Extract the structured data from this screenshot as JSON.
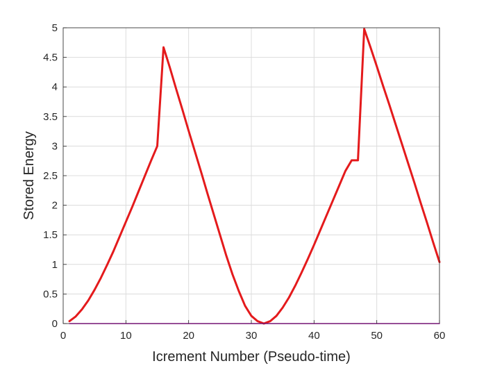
{
  "chart_data": {
    "type": "line",
    "title": "",
    "xlabel": "Icrement Number (Pseudo-time)",
    "ylabel": "Stored Energy",
    "xlim": [
      0,
      60
    ],
    "ylim": [
      0,
      5
    ],
    "xticks": [
      0,
      10,
      20,
      30,
      40,
      50,
      60
    ],
    "yticks": [
      0,
      0.5,
      1,
      1.5,
      2,
      2.5,
      3,
      3.5,
      4,
      4.5,
      5
    ],
    "xtick_labels": [
      "0",
      "10",
      "20",
      "30",
      "40",
      "50",
      "60"
    ],
    "ytick_labels": [
      "0",
      "0.5",
      "1",
      "1.5",
      "2",
      "2.5",
      "3",
      "3.5",
      "4",
      "4.5",
      "5"
    ],
    "grid": true,
    "legend": "none",
    "series": [
      {
        "color": "#e41a1c",
        "x": [
          1,
          2,
          3,
          4,
          5,
          6,
          7,
          8,
          9,
          10,
          11,
          12,
          13,
          14,
          15,
          16,
          17,
          18,
          19,
          20,
          21,
          22,
          23,
          24,
          25,
          26,
          27,
          28,
          29,
          30,
          31,
          32,
          33,
          34,
          35,
          36,
          37,
          38,
          39,
          40,
          41,
          42,
          43,
          44,
          45,
          46,
          47,
          48,
          49,
          50,
          51,
          52,
          53,
          54,
          55,
          56,
          57,
          58,
          59,
          60
        ],
        "y": [
          0.04,
          0.12,
          0.24,
          0.39,
          0.57,
          0.77,
          0.99,
          1.22,
          1.47,
          1.72,
          1.97,
          2.23,
          2.49,
          2.75,
          3.0,
          4.67,
          4.33,
          3.97,
          3.62,
          3.26,
          2.91,
          2.56,
          2.2,
          1.85,
          1.5,
          1.15,
          0.83,
          0.55,
          0.3,
          0.13,
          0.04,
          0.0,
          0.04,
          0.13,
          0.27,
          0.44,
          0.64,
          0.86,
          1.09,
          1.33,
          1.58,
          1.83,
          2.08,
          2.33,
          2.58,
          2.76,
          2.76,
          4.98,
          4.67,
          4.35,
          4.02,
          3.7,
          3.37,
          3.04,
          2.71,
          2.38,
          2.04,
          1.71,
          1.37,
          1.04
        ]
      },
      {
        "color": "#cc00cc",
        "x": [
          1,
          60
        ],
        "y": [
          0,
          0
        ]
      }
    ]
  }
}
